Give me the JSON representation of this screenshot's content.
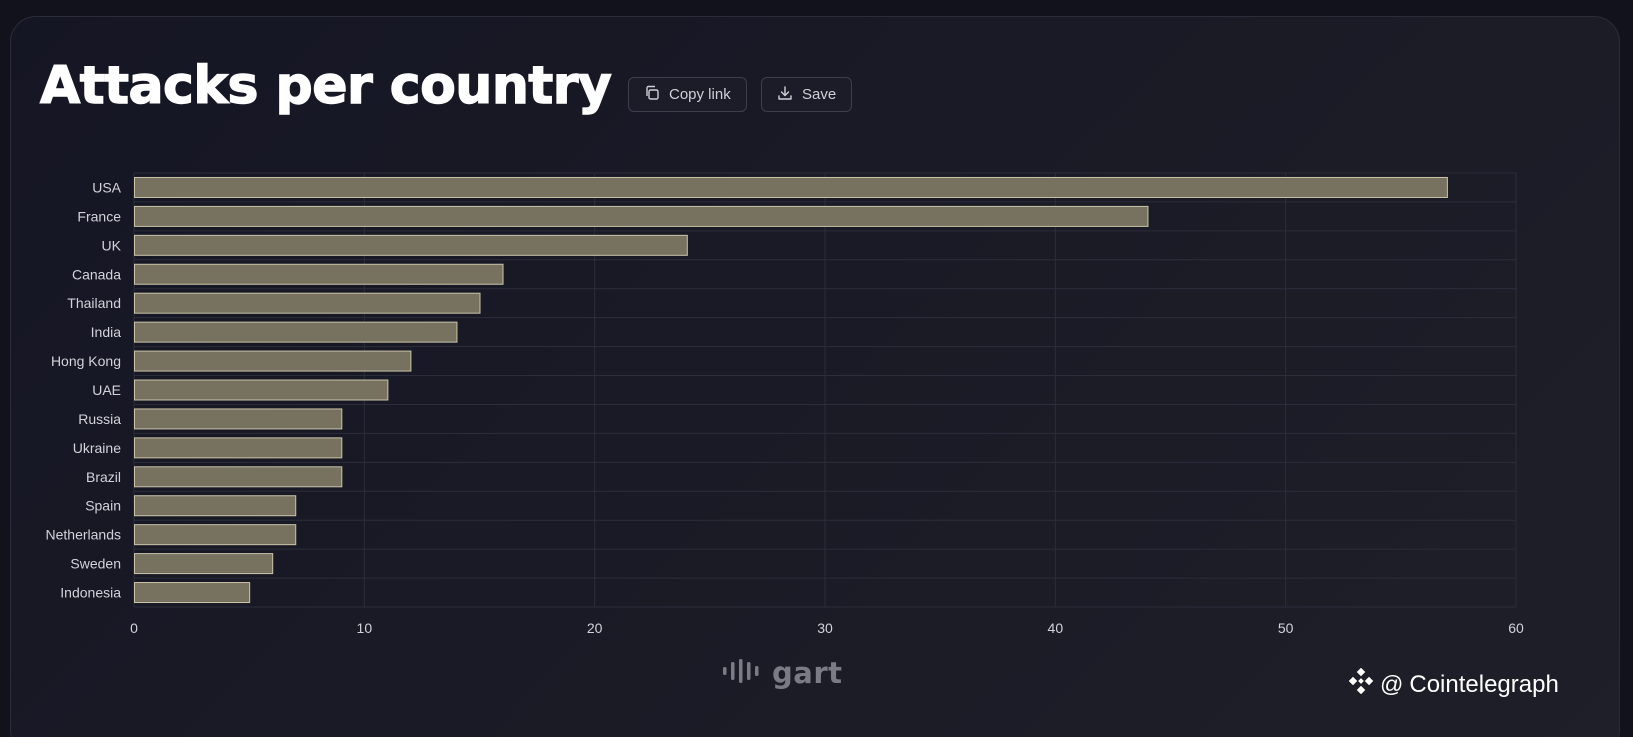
{
  "header": {
    "title": "Attacks per country",
    "copy_link_label": "Copy link",
    "save_label": "Save",
    "copy_icon": "copy-icon",
    "save_icon": "download-icon"
  },
  "footer": {
    "brand_text": "gart",
    "brand_icon": "gart-bars-icon",
    "watermark_at": "@",
    "watermark_text": "Cointelegraph",
    "watermark_icon": "cointelegraph-diamond-icon"
  },
  "colors": {
    "bar_fill": "#77725f",
    "bar_stroke": "#c9c4a8",
    "grid": "#2c2c3b",
    "tick_text": "#d2d2da"
  },
  "chart_data": {
    "type": "bar",
    "orientation": "horizontal",
    "title": "Attacks per country",
    "xlabel": "",
    "ylabel": "",
    "categories": [
      "USA",
      "France",
      "UK",
      "Canada",
      "Thailand",
      "India",
      "Hong Kong",
      "UAE",
      "Russia",
      "Ukraine",
      "Brazil",
      "Spain",
      "Netherlands",
      "Sweden",
      "Indonesia"
    ],
    "values": [
      57,
      44,
      24,
      16,
      15,
      14,
      12,
      11,
      9,
      9,
      9,
      7,
      7,
      6,
      5
    ],
    "xlim": [
      0,
      60
    ],
    "xticks": [
      0,
      10,
      20,
      30,
      40,
      50,
      60
    ],
    "grid": true,
    "legend": "none"
  }
}
